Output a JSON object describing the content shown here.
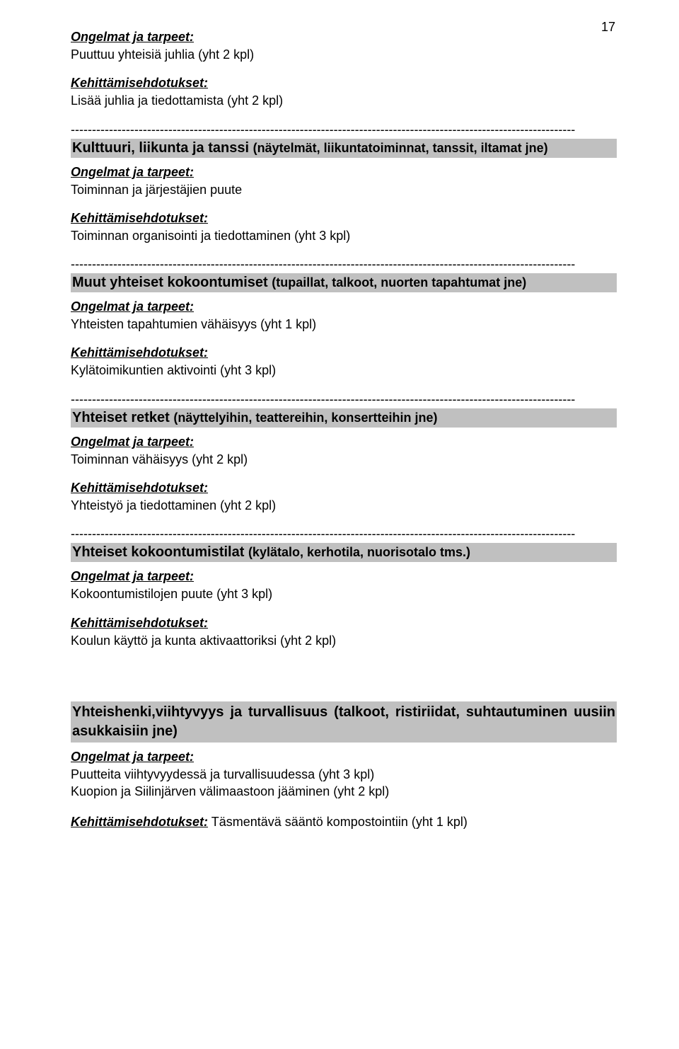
{
  "page_number": "17",
  "colors": {
    "background": "#ffffff",
    "text": "#000000",
    "section_bg": "#c0c0c0"
  },
  "typography": {
    "body_size_pt": 14,
    "heading_size_pt": 15,
    "family": "Arial"
  },
  "divider_line": "-----------------------------------------------------------------------------------------------------------------------",
  "s1": {
    "problems_label": "Ongelmat ja tarpeet:",
    "problems_text": "Puuttuu yhteisiä juhlia (yht 2 kpl)",
    "dev_label": "Kehittämisehdotukset:",
    "dev_text": "Lisää juhlia ja tiedottamista (yht 2 kpl)"
  },
  "s2": {
    "title_main": "Kulttuuri, liikunta ja tanssi ",
    "title_sub": "(näytelmät, liikuntatoiminnat, tanssit, iltamat jne)",
    "problems_label": "Ongelmat ja tarpeet:",
    "problems_text": "Toiminnan ja järjestäjien puute",
    "dev_label": "Kehittämisehdotukset:",
    "dev_text": "Toiminnan organisointi ja tiedottaminen (yht 3 kpl)"
  },
  "s3": {
    "title_main": "Muut yhteiset kokoontumiset ",
    "title_sub": "(tupaillat, talkoot, nuorten tapahtumat jne)",
    "problems_label": "Ongelmat ja tarpeet:",
    "problems_text": "Yhteisten tapahtumien vähäisyys (yht 1 kpl)",
    "dev_label": "Kehittämisehdotukset:",
    "dev_text": "Kylätoimikuntien aktivointi (yht 3 kpl)"
  },
  "s4": {
    "title_main": "Yhteiset retket ",
    "title_sub": "(näyttelyihin, teattereihin, konsertteihin jne)",
    "problems_label": "Ongelmat ja tarpeet:",
    "problems_text": "Toiminnan vähäisyys (yht 2 kpl)",
    "dev_label": "Kehittämisehdotukset:",
    "dev_text": "Yhteistyö ja tiedottaminen (yht 2 kpl)"
  },
  "s5": {
    "title_main": "Yhteiset kokoontumistilat ",
    "title_sub": "(kylätalo, kerhotila, nuorisotalo tms.)",
    "problems_label": "Ongelmat ja tarpeet:",
    "problems_text": "Kokoontumistilojen puute (yht 3 kpl)",
    "dev_label": "Kehittämisehdotukset:",
    "dev_text": "Koulun käyttö ja kunta aktivaattoriksi (yht 2 kpl)"
  },
  "s6": {
    "title_line": "Yhteishenki,viihtyvyys ja turvallisuus (talkoot, ristiriidat, suhtautuminen uusiin asukkaisiin jne)",
    "problems_label": "Ongelmat ja tarpeet:",
    "problems_text1": "Puutteita viihtyvyydessä ja turvallisuudessa (yht 3 kpl)",
    "problems_text2": "Kuopion ja Siilinjärven välimaastoon jääminen (yht 2 kpl)",
    "dev_label": "Kehittämisehdotukset:",
    "dev_text": " Täsmentävä sääntö kompostointiin (yht 1 kpl)"
  }
}
